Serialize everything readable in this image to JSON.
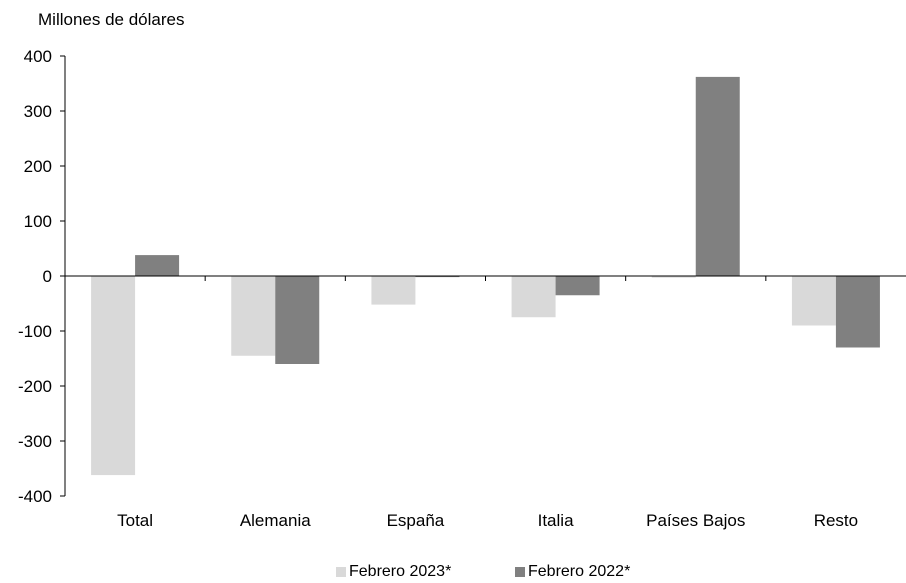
{
  "chart_data": {
    "type": "bar",
    "ylabel": "Millones de dólares",
    "ylim": [
      -400,
      400
    ],
    "yticks": [
      400,
      300,
      200,
      100,
      0,
      -100,
      -200,
      -300,
      -400
    ],
    "categories": [
      "Total",
      "Alemania",
      "España",
      "Italia",
      "Países Bajos",
      "Resto"
    ],
    "series": [
      {
        "name": "Febrero 2023*",
        "color": "#d9d9d9",
        "values": [
          -362,
          -145,
          -52,
          -75,
          -3,
          -90
        ]
      },
      {
        "name": "Febrero 2022*",
        "color": "#808080",
        "values": [
          38,
          -160,
          -2,
          -35,
          362,
          -130
        ]
      }
    ],
    "grid": false,
    "legend": "bottom"
  }
}
